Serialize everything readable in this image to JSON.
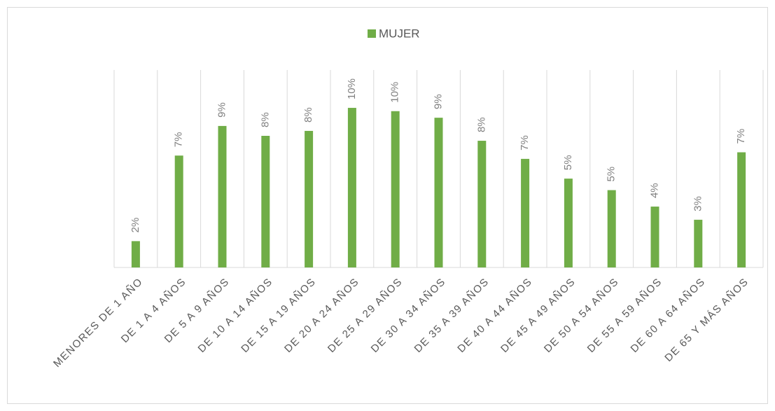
{
  "chart_data": {
    "type": "bar",
    "categories": [
      "MENORES DE 1 AÑO",
      "DE 1 A 4 AÑOS",
      "DE 5 A 9 AÑOS",
      "DE 10 A 14 AÑOS",
      "DE 15 A 19 AÑOS",
      "DE 20 A 24 AÑOS",
      "DE 25 A 29 AÑOS",
      "DE 30 A 34 AÑOS",
      "DE 35 A 39 AÑOS",
      "DE 40 A 44 AÑOS",
      "DE 45 A 49 AÑOS",
      "DE 50 A 54 AÑOS",
      "DE 55 A 59 AÑOS",
      "DE 60 A 64 AÑOS",
      "DE 65 Y MÁS AÑOS"
    ],
    "series": [
      {
        "name": "MUJER",
        "color": "#70ad47",
        "values": [
          1.6,
          6.8,
          8.6,
          8.0,
          8.3,
          9.7,
          9.5,
          9.1,
          7.7,
          6.6,
          5.4,
          4.7,
          3.7,
          2.9,
          7.0
        ],
        "value_labels": [
          "2%",
          "7%",
          "9%",
          "8%",
          "8%",
          "10%",
          "10%",
          "9%",
          "8%",
          "7%",
          "5%",
          "5%",
          "4%",
          "3%",
          "7%"
        ]
      }
    ],
    "ylim": [
      0,
      12
    ],
    "legend": "top"
  }
}
